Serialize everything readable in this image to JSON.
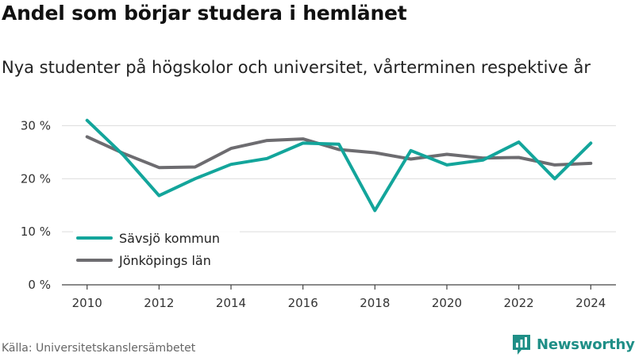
{
  "header": {
    "title": "Andel som börjar studera i hemlänet",
    "subtitle": "Nya studenter på högskolor och universitet, vårterminen respektive år"
  },
  "footer": {
    "source": "Källa: Universitetskanslersämbetet",
    "brand": "Newsworthy",
    "brand_icon": "newsworthy-logo-icon",
    "brand_color": "#1f8f87"
  },
  "chart_data": {
    "type": "line",
    "x": [
      2010,
      2011,
      2012,
      2013,
      2014,
      2015,
      2016,
      2017,
      2018,
      2019,
      2020,
      2021,
      2022,
      2023,
      2024
    ],
    "x_tick_labels": [
      "2010",
      "2012",
      "2014",
      "2016",
      "2018",
      "2020",
      "2022",
      "2024"
    ],
    "y_ticks": [
      0,
      10,
      20,
      30
    ],
    "y_tick_labels": [
      "0 %",
      "10 %",
      "20 %",
      "30 %"
    ],
    "ylim": [
      0,
      32
    ],
    "xlim": [
      2009.3,
      2024.7
    ],
    "grid": "horizontal",
    "legend_position": "bottom-left",
    "series": [
      {
        "name": "Sävsjö kommun",
        "color": "#13a59b",
        "values": [
          31.0,
          24.5,
          16.8,
          20.0,
          22.7,
          23.8,
          26.7,
          26.5,
          14.0,
          25.3,
          22.6,
          23.5,
          26.9,
          20.0,
          26.7
        ]
      },
      {
        "name": "Jönköpings län",
        "color": "#6d6c70",
        "values": [
          27.9,
          24.8,
          22.1,
          22.2,
          25.7,
          27.2,
          27.5,
          25.5,
          24.9,
          23.7,
          24.6,
          23.9,
          24.0,
          22.6,
          22.9
        ]
      }
    ]
  }
}
